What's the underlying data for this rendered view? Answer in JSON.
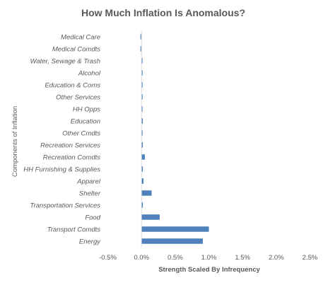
{
  "chart_data": {
    "type": "bar",
    "orientation": "horizontal",
    "title": "How Much Inflation Is Anomalous?",
    "xlabel": "Strength Scaled By Infrequency",
    "ylabel": "Components of Inflation",
    "xlim": [
      -0.005,
      0.025
    ],
    "x_ticks": [
      -0.005,
      0.0,
      0.005,
      0.01,
      0.015,
      0.02,
      0.025
    ],
    "x_tick_labels": [
      "-0.5%",
      "0.0%",
      "0.5%",
      "1.0%",
      "1.5%",
      "2.0%",
      "2.5%"
    ],
    "grid": false,
    "legend": "none",
    "bar_color": "#4f81bd",
    "categories": [
      "Medical Care",
      "Medical Comdts",
      "Water, Sewage & Trash",
      "Alcohol",
      "Education & Coms",
      "Other Services",
      "HH Opps",
      "Education",
      "Other Cmdts",
      "Recreation Services",
      "Recreation Comdts",
      "HH Furnishing & Supplies",
      "Apparel",
      "Shelter",
      "Transportation Services",
      "Food",
      "Transport Comdts",
      "Energy"
    ],
    "values": [
      -0.0001,
      -0.0001,
      0.0,
      0.0,
      0.0,
      0.0001,
      0.0,
      0.0002,
      0.0001,
      0.0002,
      0.0005,
      0.0002,
      0.0003,
      0.0015,
      0.0002,
      0.0027,
      0.01,
      0.0091
    ]
  }
}
